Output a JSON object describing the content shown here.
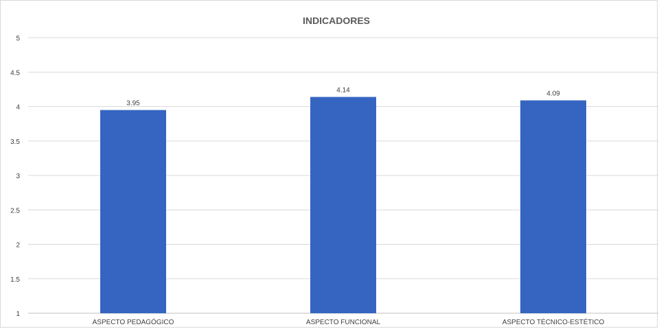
{
  "chart_data": {
    "type": "bar",
    "title": "INDICADORES",
    "categories": [
      "ASPECTO PEDAGÓGICO",
      "ASPECTO FUNCIONAL",
      "ASPECTO TÉCNICO-ESTÉTICO"
    ],
    "values": [
      3.95,
      4.14,
      4.09
    ],
    "value_labels": [
      "3.95",
      "4.14",
      "4.09"
    ],
    "ylim": [
      1,
      5
    ],
    "yticks": [
      "1",
      "1.5",
      "2",
      "2.5",
      "3",
      "3.5",
      "4",
      "4.5",
      "5"
    ],
    "grid": true,
    "legend": "none",
    "xlabel": "",
    "ylabel": ""
  },
  "colors": {
    "bar": "#3565c1",
    "grid": "#d9d9d9",
    "axis": "#bfbfbf"
  }
}
